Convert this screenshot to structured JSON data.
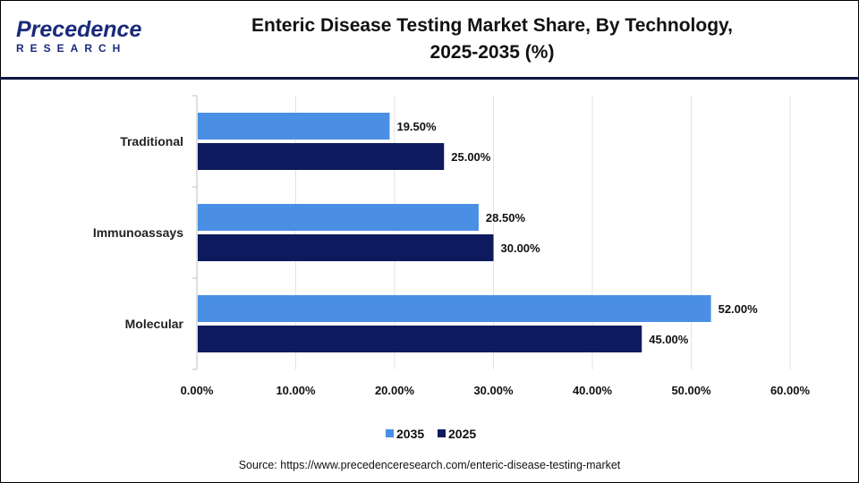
{
  "header": {
    "logo": {
      "main": "Precedence",
      "sub": "RESEARCH"
    },
    "title_line1": "Enteric Disease Testing Market Share, By Technology,",
    "title_line2": "2025-2035 (%)"
  },
  "chart_data": {
    "type": "bar",
    "orientation": "horizontal",
    "title": "Enteric Disease Testing Market Share, By Technology, 2025-2035 (%)",
    "categories": [
      "Traditional",
      "Immunoassays",
      "Molecular"
    ],
    "series": [
      {
        "name": "2035",
        "color": "#4a8fe3",
        "values": [
          19.5,
          28.5,
          52.0
        ],
        "labels": [
          "19.50%",
          "28.50%",
          "52.00%"
        ]
      },
      {
        "name": "2025",
        "color": "#0d1a5e",
        "values": [
          25.0,
          30.0,
          45.0
        ],
        "labels": [
          "25.00%",
          "30.00%",
          "45.00%"
        ]
      }
    ],
    "xlim": [
      0,
      60
    ],
    "xticks": [
      "0.00%",
      "10.00%",
      "20.00%",
      "30.00%",
      "40.00%",
      "50.00%",
      "60.00%"
    ],
    "grid": true,
    "legend": "bottom"
  },
  "source": "Source: https://www.precedenceresearch.com/enteric-disease-testing-market"
}
